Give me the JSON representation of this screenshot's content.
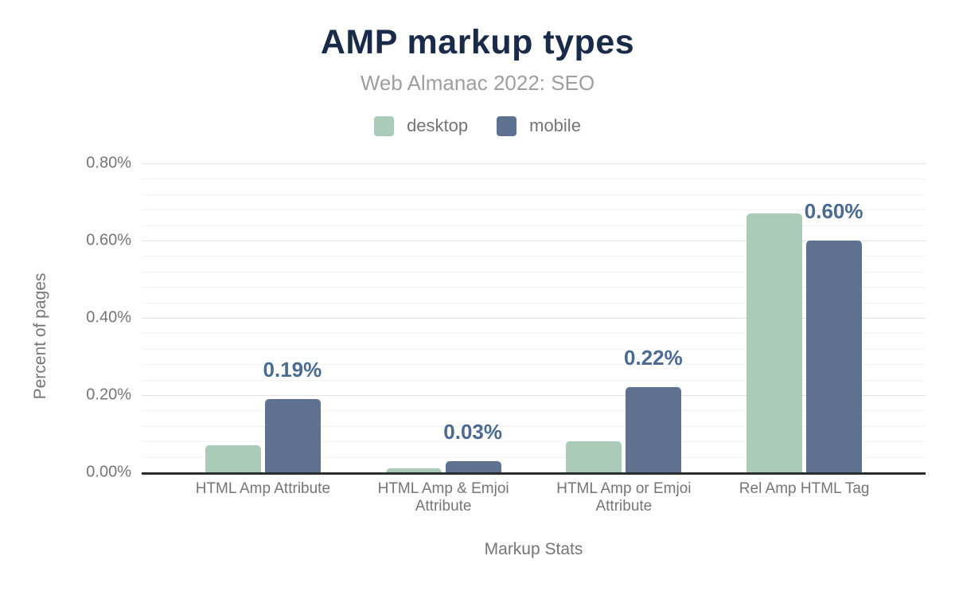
{
  "chart_data": {
    "type": "bar",
    "title": "AMP markup types",
    "subtitle": "Web Almanac 2022: SEO",
    "categories": [
      "HTML Amp Attribute",
      "HTML Amp & Emjoi Attribute",
      "HTML Amp or Emjoi Attribute",
      "Rel Amp HTML Tag"
    ],
    "series": [
      {
        "name": "desktop",
        "color": "#a9cbb8",
        "values": [
          0.07,
          0.01,
          0.08,
          0.67
        ]
      },
      {
        "name": "mobile",
        "color": "#5e7190",
        "values": [
          0.19,
          0.03,
          0.22,
          0.6
        ]
      }
    ],
    "data_labels": [
      "0.19%",
      "0.03%",
      "0.22%",
      "0.60%"
    ],
    "data_label_series": "mobile",
    "xlabel": "Markup Stats",
    "ylabel": "Percent of pages",
    "ylim": [
      0,
      0.8
    ],
    "yticks": [
      "0.00%",
      "0.20%",
      "0.40%",
      "0.60%",
      "0.80%"
    ],
    "ytick_values": [
      0,
      0.2,
      0.4,
      0.6,
      0.8
    ],
    "minor_grid_step": 0.04,
    "grid": true,
    "legend_position": "top"
  },
  "colors": {
    "title": "#1a2b49",
    "subtitle": "#9e9e9e",
    "axis_text": "#757575",
    "data_label": "#4a6a92",
    "axis_line": "#2d2d2d",
    "major_grid": "#e2e2e2",
    "minor_grid": "#f3f3f3",
    "background": "#ffffff"
  }
}
